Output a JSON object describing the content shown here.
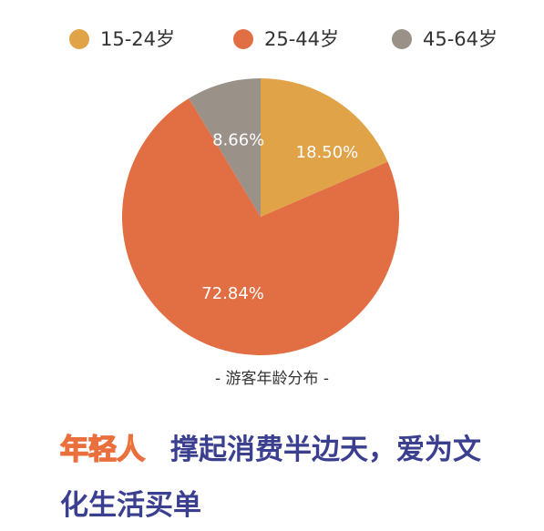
{
  "legend": {
    "items": [
      {
        "label": "15-24岁",
        "color": "#e0a347"
      },
      {
        "label": "25-44岁",
        "color": "#e26f43"
      },
      {
        "label": "45-64岁",
        "color": "#9a9189"
      }
    ]
  },
  "chart": {
    "caption": "- 游客年龄分布 -"
  },
  "chart_data": {
    "type": "pie",
    "categories": [
      "15-24岁",
      "25-44岁",
      "45-64岁"
    ],
    "values": [
      18.5,
      72.84,
      8.66
    ],
    "labels": [
      "18.50%",
      "72.84%",
      "8.66%"
    ],
    "colors": [
      "#e0a347",
      "#e26f43",
      "#9a9189"
    ],
    "legend_position": "top",
    "title": "- 游客年龄分布 -"
  },
  "headline": {
    "highlight": "年轻人",
    "rest_line1": "撑起消费半边天，爱为文",
    "line2": "化生活买单"
  }
}
